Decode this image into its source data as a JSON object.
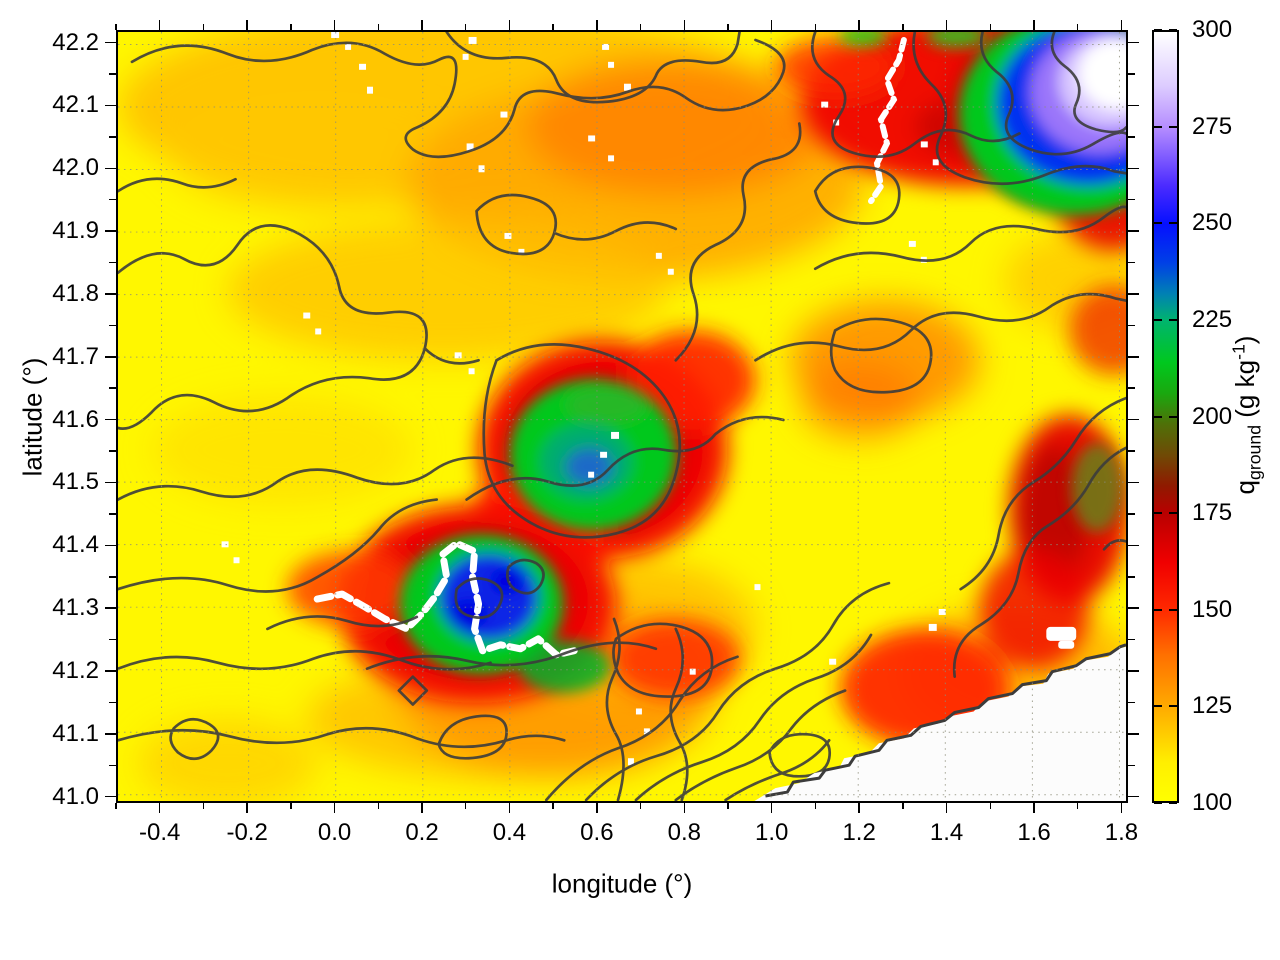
{
  "chart_data": {
    "type": "heatmap",
    "title": "",
    "xlabel": "longitude (°)",
    "ylabel": "latitude (°)",
    "xlim": [
      -0.5,
      1.815
    ],
    "ylim": [
      40.99,
      42.22
    ],
    "x_ticks": {
      "values": [
        -0.4,
        -0.2,
        0.0,
        0.2,
        0.4,
        0.6,
        0.8,
        1.0,
        1.2,
        1.4,
        1.6,
        1.8
      ],
      "labels": [
        "-0.4",
        "-0.2",
        "0.0",
        "0.2",
        "0.4",
        "0.6",
        "0.8",
        "1.0",
        "1.2",
        "1.4",
        "1.6",
        "1.8"
      ],
      "minor_step": 0.1
    },
    "y_ticks": {
      "values": [
        41.0,
        41.1,
        41.2,
        41.3,
        41.4,
        41.5,
        41.6,
        41.7,
        41.8,
        41.9,
        42.0,
        42.1,
        42.2
      ],
      "labels": [
        "41.0",
        "41.1",
        "41.2",
        "41.3",
        "41.4",
        "41.5",
        "41.6",
        "41.7",
        "41.8",
        "41.9",
        "42.0",
        "42.1",
        "42.2"
      ],
      "minor_step": 0.05
    },
    "grid": "dotted grey lines at every labelled tick",
    "colorbar": {
      "title_parts": {
        "base": "q",
        "subscript": "ground",
        "mid": " (g kg",
        "superscript": "-1",
        "end": ")"
      },
      "range": [
        100,
        300
      ],
      "tick_values": [
        100,
        125,
        150,
        175,
        200,
        225,
        250,
        275,
        300
      ],
      "tick_labels": [
        "100",
        "125",
        "150",
        "175",
        "200",
        "225",
        "250",
        "275",
        "300"
      ],
      "stops": [
        {
          "value": 100,
          "color": "#ffff00"
        },
        {
          "value": 110,
          "color": "#ffef00"
        },
        {
          "value": 125,
          "color": "#ffa800"
        },
        {
          "value": 138,
          "color": "#ff7000"
        },
        {
          "value": 150,
          "color": "#ff2800"
        },
        {
          "value": 162,
          "color": "#f00000"
        },
        {
          "value": 175,
          "color": "#b80000"
        },
        {
          "value": 182,
          "color": "#8f1a00"
        },
        {
          "value": 190,
          "color": "#6f4a05"
        },
        {
          "value": 198,
          "color": "#4f7008"
        },
        {
          "value": 206,
          "color": "#1aa80f"
        },
        {
          "value": 214,
          "color": "#00c81e"
        },
        {
          "value": 225,
          "color": "#00b46e"
        },
        {
          "value": 232,
          "color": "#0080b4"
        },
        {
          "value": 240,
          "color": "#0040e6"
        },
        {
          "value": 250,
          "color": "#0510ff"
        },
        {
          "value": 260,
          "color": "#4b2bff"
        },
        {
          "value": 275,
          "color": "#b48cff"
        },
        {
          "value": 286,
          "color": "#ddccff"
        },
        {
          "value": 300,
          "color": "#ffffff"
        }
      ]
    },
    "overlays": {
      "contours": "dark grey terrain contour lines across the whole map",
      "missing_data": "white pixels: sea area in the bottom-right corner, jagged river traces and scattered specks"
    },
    "hotspots": [
      {
        "name": "northeast-maximum",
        "lon": 1.72,
        "lat": 42.16,
        "peak_value": 300,
        "description": "white/violet core ringed by blue, green and red"
      },
      {
        "name": "central-green-maximum",
        "lon": 0.57,
        "lat": 41.53,
        "peak_value": 235,
        "description": "green patch with blue-teal core, red ring around it"
      },
      {
        "name": "southwest-blue-maximum",
        "lon": 0.33,
        "lat": 41.35,
        "peak_value": 255,
        "description": "deep blue core in green patch, red ring, crossed by white river trace"
      },
      {
        "name": "east-ridge-band",
        "lon": 1.7,
        "lat": 41.45,
        "peak_value": 195,
        "description": "dark olive-green streak inside red band at east edge"
      },
      {
        "name": "north-red-band",
        "lon": 1.05,
        "lat": 42.14,
        "peak_value": 185,
        "description": "dark red band along top edge"
      },
      {
        "name": "coastal-red-patch",
        "lon": 1.17,
        "lat": 41.17,
        "peak_value": 165,
        "description": "red patch just inland of the coastline"
      },
      {
        "name": "background",
        "lon": null,
        "lat": null,
        "peak_value": 120,
        "description": "yellow to orange background field, 100-140 g/kg"
      }
    ]
  }
}
